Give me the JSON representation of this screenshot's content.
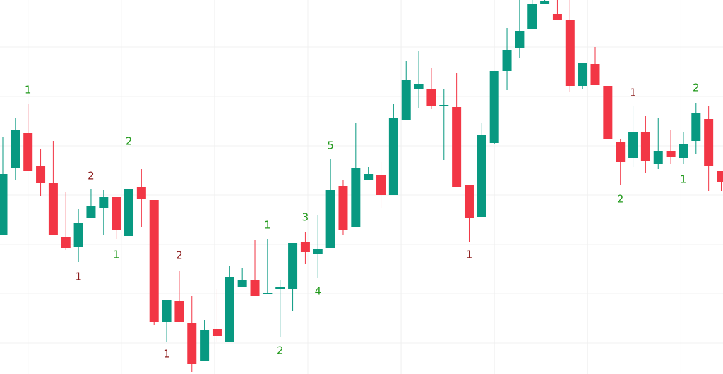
{
  "chart_data": {
    "type": "candlestick",
    "x": [
      0,
      1,
      2,
      3,
      4,
      5,
      6,
      7,
      8,
      9,
      10,
      11,
      12,
      13,
      14,
      15,
      16,
      17,
      18,
      19,
      20,
      21,
      22,
      23,
      24,
      25,
      26,
      27,
      28,
      29,
      30,
      31,
      32,
      33,
      34,
      35,
      36,
      37,
      38,
      39,
      40,
      41,
      42,
      43,
      44,
      45,
      46,
      47,
      48,
      49,
      50,
      51,
      52,
      53,
      54,
      55,
      56,
      57
    ],
    "open": [
      198,
      293,
      342,
      296,
      271,
      194,
      181,
      221,
      236,
      251,
      196,
      265,
      247,
      74,
      103,
      73,
      19,
      64,
      46,
      124,
      133,
      113,
      120,
      121,
      187,
      170,
      179,
      267,
      209,
      275,
      282,
      254,
      361,
      404,
      404,
      381,
      379,
      269,
      223,
      328,
      430,
      463,
      490,
      525,
      511,
      502,
      409,
      440,
      409,
      329,
      306,
      343,
      298,
      316,
      306,
      331,
      362,
      288
    ],
    "high": [
      336,
      363,
      384,
      319,
      331,
      258,
      234,
      263,
      261,
      251,
      311,
      291,
      247,
      105,
      146,
      111,
      76,
      121,
      154,
      151,
      190,
      192,
      133,
      186,
      201,
      226,
      305,
      276,
      356,
      294,
      301,
      384,
      444,
      459,
      434,
      404,
      427,
      269,
      356,
      430,
      491,
      531,
      531,
      531,
      531,
      531,
      441,
      464,
      409,
      333,
      380,
      366,
      363,
      346,
      344,
      385,
      381,
      288
    ],
    "low": [
      198,
      276,
      288,
      253,
      198,
      176,
      159,
      221,
      198,
      191,
      196,
      208,
      69,
      46,
      74,
      3,
      19,
      46,
      46,
      124,
      111,
      113,
      53,
      90,
      156,
      136,
      179,
      198,
      209,
      275,
      236,
      254,
      361,
      378,
      376,
      304,
      266,
      188,
      223,
      326,
      403,
      448,
      490,
      525,
      502,
      401,
      404,
      410,
      334,
      268,
      294,
      285,
      291,
      298,
      298,
      313,
      260,
      260
    ],
    "close": [
      284,
      347,
      288,
      271,
      198,
      179,
      214,
      238,
      251,
      204,
      263,
      248,
      74,
      105,
      74,
      14,
      62,
      54,
      138,
      133,
      111,
      115,
      123,
      186,
      173,
      178,
      261,
      204,
      293,
      284,
      254,
      364,
      417,
      412,
      381,
      382,
      266,
      221,
      340,
      430,
      460,
      487,
      526,
      529,
      502,
      409,
      441,
      410,
      334,
      301,
      343,
      303,
      316,
      308,
      327,
      371,
      295,
      273
    ],
    "up_color": "#089981",
    "down_color": "#f23645",
    "xlim": [
      -0.224,
      57.14
    ],
    "ylim": [
      0,
      531
    ],
    "xticks": [
      2,
      9.4,
      16.8,
      24.2,
      31.6,
      39,
      46.4,
      53.8
    ],
    "yticks": [
      44,
      114,
      184,
      254,
      324,
      394,
      464
    ],
    "grid": true,
    "annotations": [
      {
        "label": "1",
        "x": 2,
        "y": 403,
        "color": "#229a1c"
      },
      {
        "label": "2",
        "x": 7,
        "y": 281,
        "color": "#8b1c1c"
      },
      {
        "label": "1",
        "x": 6,
        "y": 138,
        "color": "#8b1c1c"
      },
      {
        "label": "2",
        "x": 10,
        "y": 330,
        "color": "#229a1c"
      },
      {
        "label": "1",
        "x": 9,
        "y": 169,
        "color": "#229a1c"
      },
      {
        "label": "2",
        "x": 14,
        "y": 168,
        "color": "#8b1c1c"
      },
      {
        "label": "1",
        "x": 13,
        "y": 28,
        "color": "#8b1c1c"
      },
      {
        "label": "1",
        "x": 21,
        "y": 211,
        "color": "#229a1c"
      },
      {
        "label": "2",
        "x": 22,
        "y": 33,
        "color": "#229a1c"
      },
      {
        "label": "3",
        "x": 24,
        "y": 222,
        "color": "#229a1c"
      },
      {
        "label": "4",
        "x": 25,
        "y": 117,
        "color": "#229a1c"
      },
      {
        "label": "5",
        "x": 26,
        "y": 324,
        "color": "#229a1c"
      },
      {
        "label": "1",
        "x": 37,
        "y": 169,
        "color": "#8b1c1c"
      },
      {
        "label": "1",
        "x": 50,
        "y": 399,
        "color": "#8b1c1c"
      },
      {
        "label": "2",
        "x": 49,
        "y": 248,
        "color": "#229a1c"
      },
      {
        "label": "2",
        "x": 55,
        "y": 406,
        "color": "#229a1c"
      },
      {
        "label": "1",
        "x": 54,
        "y": 276,
        "color": "#229a1c"
      }
    ]
  }
}
